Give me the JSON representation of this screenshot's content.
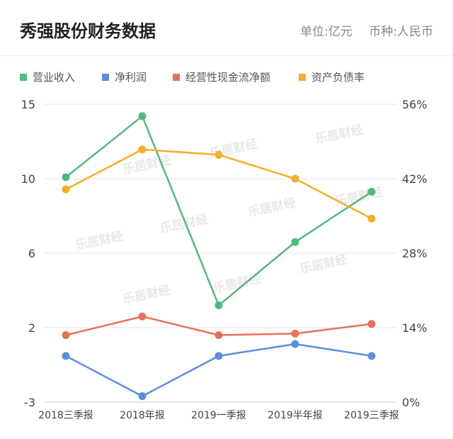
{
  "header": {
    "title": "秀强股份财务数据",
    "unit": "单位:亿元",
    "currency": "币种:人民币"
  },
  "watermark": "乐居财经",
  "chart_data": {
    "type": "line",
    "categories": [
      "2018三季报",
      "2018年报",
      "2019一季报",
      "2019半年报",
      "2019三季报"
    ],
    "y_left": {
      "ticks": [
        15,
        10,
        6,
        2,
        -3
      ],
      "range": [
        -3,
        15
      ]
    },
    "y_right": {
      "ticks": [
        "56%",
        "42%",
        "28%",
        "14%",
        "0%"
      ],
      "range": [
        0,
        56
      ]
    },
    "grid": "horizontal",
    "legend_position": "top-left",
    "series": [
      {
        "name": "营业收入",
        "axis": "left",
        "color": "#52b881",
        "values": [
          10.1,
          14.2,
          3.2,
          6.6,
          9.3
        ]
      },
      {
        "name": "净利润",
        "axis": "left",
        "color": "#5b8fdb",
        "values": [
          0.1,
          -2.6,
          0.1,
          0.9,
          0.1
        ]
      },
      {
        "name": "经营性现金流净额",
        "axis": "left",
        "color": "#e8705b",
        "values": [
          1.5,
          2.6,
          1.5,
          1.6,
          2.2
        ]
      },
      {
        "name": "资产负债率",
        "axis": "right",
        "color": "#f3ae2d",
        "values": [
          40,
          47.5,
          46.5,
          42,
          34.5
        ]
      }
    ]
  }
}
